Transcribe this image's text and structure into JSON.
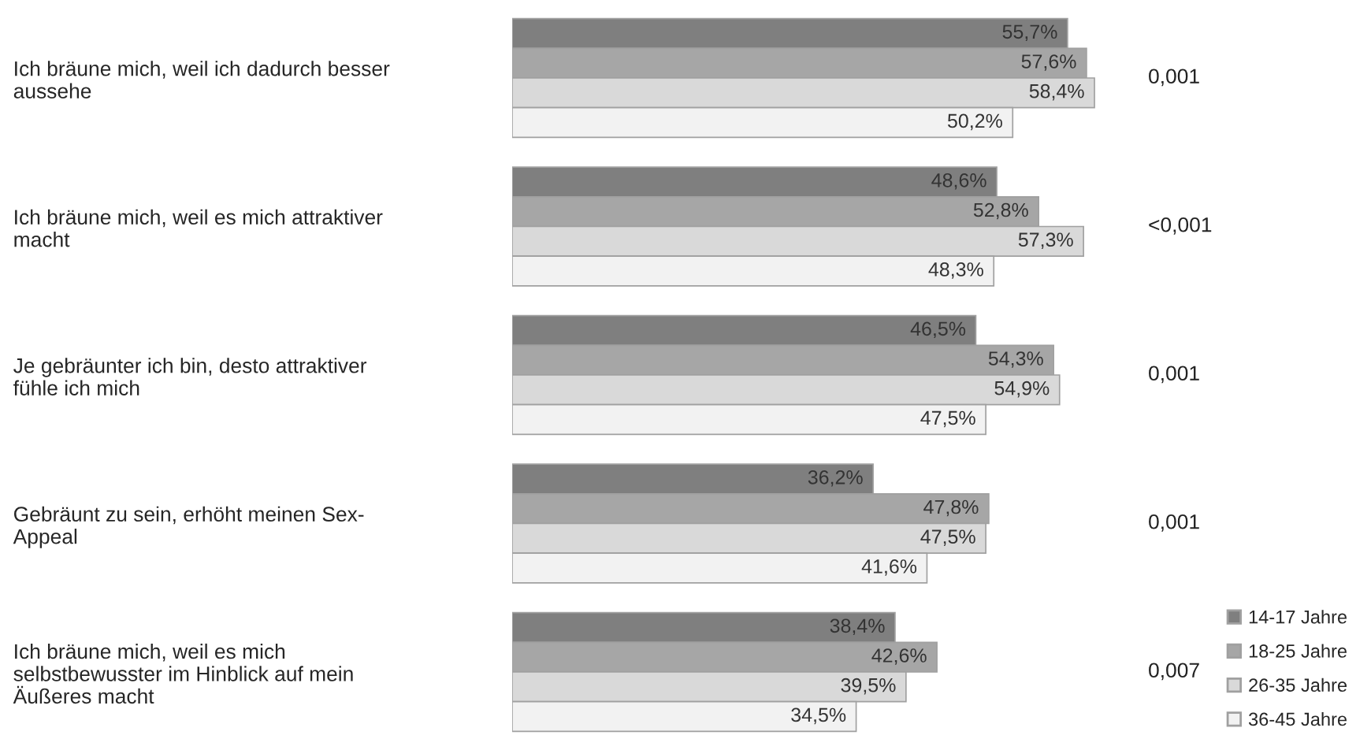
{
  "chart_data": {
    "type": "bar",
    "orientation": "horizontal",
    "data_labels": true,
    "legend": "bottom right",
    "categories": [
      "Ich bräune mich, weil ich dadurch besser\naussehe",
      "Ich bräune mich, weil es mich attraktiver\nmacht",
      "Je gebräunter ich bin, desto attraktiver\nfühle ich mich",
      "Gebräunt zu sein, erhöht meinen Sex-\nAppeal",
      "Ich bräune mich, weil es mich\nselbstbewusster im Hinblick auf mein\nÄußeres macht"
    ],
    "series": [
      {
        "name": "14-17 Jahre",
        "color": "#7f7f7f",
        "values": [
          55.7,
          48.6,
          46.5,
          36.2,
          38.4
        ],
        "value_labels": [
          "55,7%",
          "48,6%",
          "46,5%",
          "36,2%",
          "38,4%"
        ]
      },
      {
        "name": "18-25 Jahre",
        "color": "#a6a6a6",
        "values": [
          57.6,
          52.8,
          54.3,
          47.8,
          42.6
        ],
        "value_labels": [
          "57,6%",
          "52,8%",
          "54,3%",
          "47,8%",
          "42,6%"
        ]
      },
      {
        "name": "26-35 Jahre",
        "color": "#d9d9d9",
        "values": [
          58.4,
          57.3,
          54.9,
          47.5,
          39.5
        ],
        "value_labels": [
          "58,4%",
          "57,3%",
          "54,9%",
          "47,5%",
          "39,5%"
        ]
      },
      {
        "name": "36-45 Jahre",
        "color": "#f2f2f2",
        "values": [
          50.2,
          48.3,
          47.5,
          41.6,
          34.5
        ],
        "value_labels": [
          "50,2%",
          "48,3%",
          "47,5%",
          "41,6%",
          "34,5%"
        ]
      }
    ],
    "annotations": [
      "0,001",
      "<0,001",
      "0,001",
      "0,001",
      "0,007"
    ]
  }
}
